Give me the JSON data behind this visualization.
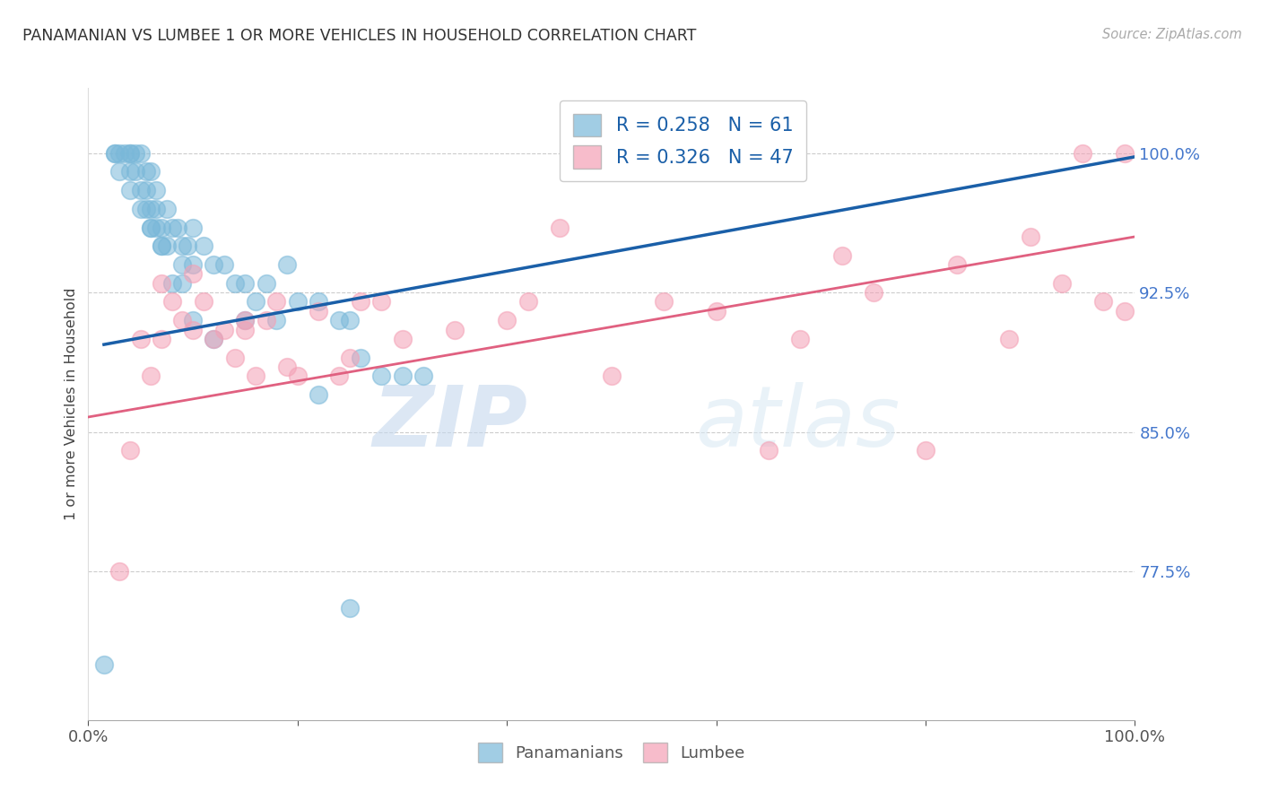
{
  "title": "PANAMANIAN VS LUMBEE 1 OR MORE VEHICLES IN HOUSEHOLD CORRELATION CHART",
  "source": "Source: ZipAtlas.com",
  "ylabel": "1 or more Vehicles in Household",
  "ytick_labels": [
    "100.0%",
    "92.5%",
    "85.0%",
    "77.5%"
  ],
  "ytick_values": [
    1.0,
    0.925,
    0.85,
    0.775
  ],
  "xlim": [
    0.0,
    1.0
  ],
  "ylim": [
    0.695,
    1.035
  ],
  "legend_label1": "R = 0.258   N = 61",
  "legend_label2": "R = 0.326   N = 47",
  "legend_group1": "Panamanians",
  "legend_group2": "Lumbee",
  "color_blue": "#7ab8d9",
  "color_pink": "#f4a0b5",
  "line_color_blue": "#1a5fa8",
  "line_color_pink": "#e06080",
  "watermark_zip": "ZIP",
  "watermark_atlas": "atlas",
  "panamanian_x": [
    0.015,
    0.025,
    0.025,
    0.03,
    0.035,
    0.04,
    0.04,
    0.04,
    0.045,
    0.045,
    0.05,
    0.05,
    0.055,
    0.055,
    0.055,
    0.06,
    0.06,
    0.06,
    0.065,
    0.065,
    0.065,
    0.07,
    0.07,
    0.075,
    0.075,
    0.08,
    0.085,
    0.09,
    0.09,
    0.095,
    0.1,
    0.1,
    0.11,
    0.12,
    0.13,
    0.14,
    0.15,
    0.16,
    0.17,
    0.18,
    0.19,
    0.2,
    0.22,
    0.24,
    0.25,
    0.26,
    0.28,
    0.3,
    0.32,
    0.03,
    0.04,
    0.05,
    0.06,
    0.07,
    0.08,
    0.09,
    0.1,
    0.12,
    0.15,
    0.22,
    0.25
  ],
  "panamanian_y": [
    0.725,
    1.0,
    1.0,
    1.0,
    1.0,
    1.0,
    1.0,
    0.99,
    1.0,
    0.99,
    1.0,
    0.98,
    0.99,
    0.98,
    0.97,
    0.99,
    0.97,
    0.96,
    0.98,
    0.97,
    0.96,
    0.96,
    0.95,
    0.97,
    0.95,
    0.96,
    0.96,
    0.95,
    0.94,
    0.95,
    0.96,
    0.94,
    0.95,
    0.94,
    0.94,
    0.93,
    0.93,
    0.92,
    0.93,
    0.91,
    0.94,
    0.92,
    0.92,
    0.91,
    0.91,
    0.89,
    0.88,
    0.88,
    0.88,
    0.99,
    0.98,
    0.97,
    0.96,
    0.95,
    0.93,
    0.93,
    0.91,
    0.9,
    0.91,
    0.87,
    0.755
  ],
  "lumbee_x": [
    0.03,
    0.04,
    0.05,
    0.06,
    0.07,
    0.08,
    0.09,
    0.1,
    0.11,
    0.12,
    0.13,
    0.14,
    0.15,
    0.16,
    0.17,
    0.18,
    0.19,
    0.2,
    0.22,
    0.24,
    0.26,
    0.28,
    0.3,
    0.35,
    0.4,
    0.42,
    0.45,
    0.5,
    0.55,
    0.6,
    0.65,
    0.68,
    0.72,
    0.75,
    0.8,
    0.83,
    0.88,
    0.9,
    0.93,
    0.95,
    0.97,
    0.99,
    0.99,
    0.07,
    0.1,
    0.15,
    0.25
  ],
  "lumbee_y": [
    0.775,
    0.84,
    0.9,
    0.88,
    0.9,
    0.92,
    0.91,
    0.905,
    0.92,
    0.9,
    0.905,
    0.89,
    0.905,
    0.88,
    0.91,
    0.92,
    0.885,
    0.88,
    0.915,
    0.88,
    0.92,
    0.92,
    0.9,
    0.905,
    0.91,
    0.92,
    0.96,
    0.88,
    0.92,
    0.915,
    0.84,
    0.9,
    0.945,
    0.925,
    0.84,
    0.94,
    0.9,
    0.955,
    0.93,
    1.0,
    0.92,
    1.0,
    0.915,
    0.93,
    0.935,
    0.91,
    0.89
  ],
  "blue_trendline_x": [
    0.015,
    1.0
  ],
  "blue_trendline_y": [
    0.897,
    0.998
  ],
  "pink_trendline_x": [
    0.0,
    1.0
  ],
  "pink_trendline_y": [
    0.858,
    0.955
  ]
}
